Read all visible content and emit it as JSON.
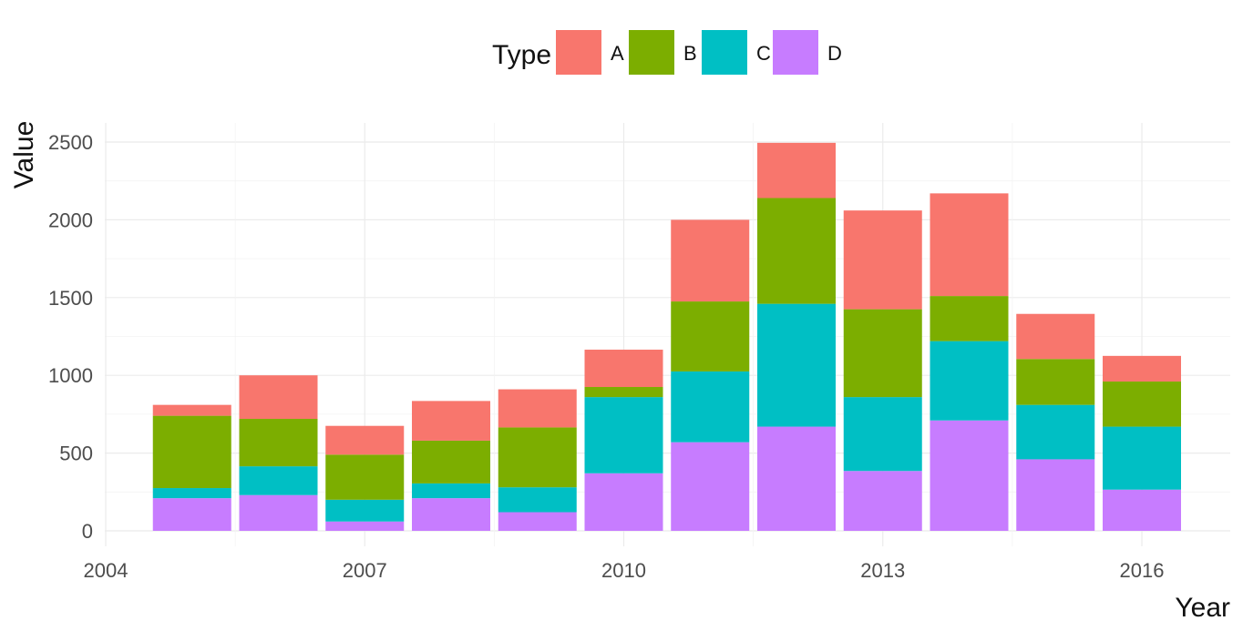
{
  "chart_data": {
    "type": "bar",
    "stacked": true,
    "x": [
      2005,
      2006,
      2007,
      2008,
      2009,
      2010,
      2011,
      2012,
      2013,
      2014,
      2015,
      2016
    ],
    "xlabel": "Year",
    "ylabel": "Value",
    "xlim": [
      2004,
      2017
    ],
    "ylim": [
      0,
      2500
    ],
    "x_ticks": [
      "2004",
      "2007",
      "2010",
      "2013",
      "2016"
    ],
    "y_ticks": [
      "0",
      "500",
      "1000",
      "1500",
      "2000",
      "2500"
    ],
    "grid": true,
    "legend": {
      "title": "Type",
      "placement": "top"
    },
    "series": [
      {
        "name": "D",
        "color": "#C77CFF",
        "values": [
          210,
          230,
          60,
          210,
          120,
          370,
          570,
          670,
          385,
          710,
          460,
          265
        ]
      },
      {
        "name": "C",
        "color": "#00BFC4",
        "values": [
          65,
          185,
          140,
          95,
          160,
          490,
          455,
          790,
          475,
          510,
          350,
          405
        ]
      },
      {
        "name": "B",
        "color": "#7CAE00",
        "values": [
          465,
          305,
          290,
          275,
          385,
          65,
          450,
          680,
          565,
          290,
          295,
          290
        ]
      },
      {
        "name": "A",
        "color": "#F8766D",
        "values": [
          70,
          280,
          185,
          255,
          245,
          240,
          525,
          355,
          635,
          660,
          290,
          165
        ]
      }
    ],
    "legend_order": [
      "A",
      "B",
      "C",
      "D"
    ]
  }
}
